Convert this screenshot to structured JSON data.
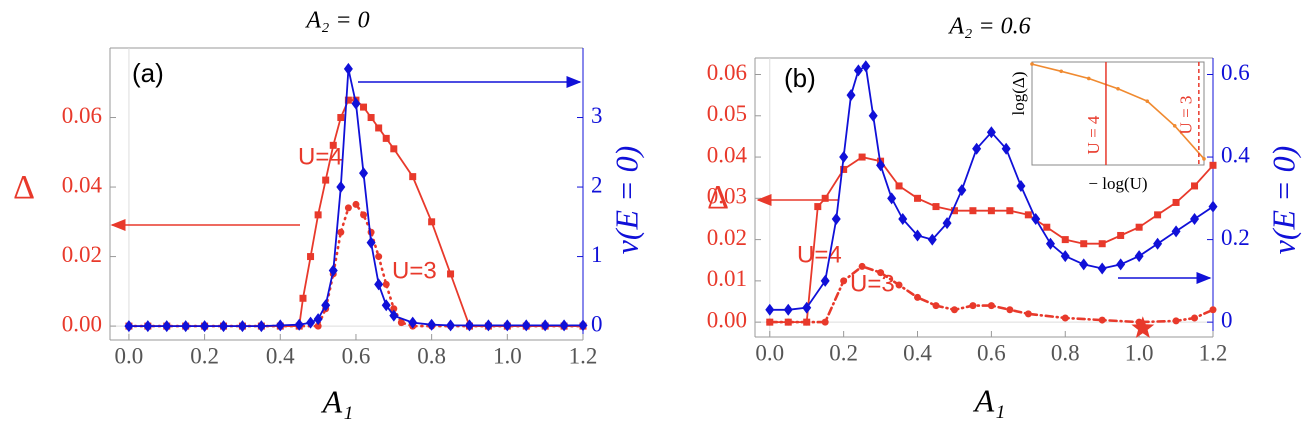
{
  "chart_data": [
    {
      "type": "line",
      "title": "A₂ = 0",
      "panel_label": "(a)",
      "x_label": "A₁",
      "y_label": "Δ",
      "y2_label": "ν(E = 0)",
      "xlim": [
        -0.05,
        1.2
      ],
      "xticks": [
        {
          "value": 0,
          "label": "0.0"
        },
        0.2,
        0.4,
        0.6,
        0.8,
        {
          "value": 1,
          "label": "1.0"
        },
        1.2
      ],
      "ylim": [
        -0.004,
        0.08
      ],
      "yticks": [
        {
          "value": 0,
          "label": "0.00"
        },
        0.02,
        0.04,
        0.06
      ],
      "y2lim": [
        -0.2,
        4.0
      ],
      "y2ticks": [
        0,
        1,
        2,
        3
      ],
      "series": [
        {
          "name": "U=4",
          "color": "#e8392b",
          "marker": "square",
          "line": "solid",
          "x": [
            0,
            0.05,
            0.1,
            0.15,
            0.2,
            0.25,
            0.3,
            0.35,
            0.4,
            0.45,
            0.46,
            0.48,
            0.5,
            0.52,
            0.54,
            0.56,
            0.58,
            0.6,
            0.62,
            0.64,
            0.66,
            0.68,
            0.7,
            0.75,
            0.8,
            0.85,
            0.9,
            0.95,
            1.0,
            1.05,
            1.1,
            1.15,
            1.2
          ],
          "values": [
            0,
            0,
            0,
            0,
            0,
            0,
            0,
            0,
            0,
            0,
            0.008,
            0.02,
            0.032,
            0.042,
            0.052,
            0.06,
            0.065,
            0.065,
            0.063,
            0.06,
            0.057,
            0.054,
            0.051,
            0.043,
            0.03,
            0.015,
            0,
            0,
            0,
            0,
            0,
            0,
            0
          ]
        },
        {
          "name": "U=3",
          "color": "#e8392b",
          "marker": "circle",
          "line": "dotted",
          "x": [
            0,
            0.05,
            0.1,
            0.15,
            0.2,
            0.25,
            0.3,
            0.35,
            0.4,
            0.45,
            0.5,
            0.52,
            0.54,
            0.56,
            0.58,
            0.6,
            0.62,
            0.64,
            0.66,
            0.68,
            0.7,
            0.72,
            0.75,
            0.8,
            0.85,
            0.9,
            0.95,
            1.0,
            1.05,
            1.1,
            1.15,
            1.2
          ],
          "values": [
            0,
            0,
            0,
            0,
            0,
            0,
            0,
            0,
            0,
            0,
            0,
            0.005,
            0.015,
            0.027,
            0.034,
            0.035,
            0.032,
            0.027,
            0.02,
            0.012,
            0.005,
            0.001,
            0,
            0,
            0,
            0,
            0,
            0,
            0,
            0,
            0,
            0
          ]
        },
        {
          "color": "#1010d8",
          "marker": "diamond",
          "line": "solid",
          "axis": "y2",
          "x": [
            0,
            0.05,
            0.1,
            0.15,
            0.2,
            0.25,
            0.3,
            0.35,
            0.4,
            0.45,
            0.48,
            0.5,
            0.52,
            0.54,
            0.56,
            0.58,
            0.6,
            0.62,
            0.64,
            0.66,
            0.68,
            0.7,
            0.75,
            0.8,
            0.85,
            0.9,
            0.95,
            1.0,
            1.05,
            1.1,
            1.15,
            1.2
          ],
          "values": [
            0,
            0,
            0,
            0,
            0,
            0,
            0,
            0,
            0.01,
            0.02,
            0.05,
            0.1,
            0.3,
            0.8,
            2.0,
            3.7,
            3.2,
            2.2,
            1.2,
            0.6,
            0.3,
            0.15,
            0.05,
            0.02,
            0.01,
            0.01,
            0.01,
            0.01,
            0.01,
            0.01,
            0.01,
            0.01
          ]
        }
      ]
    },
    {
      "type": "line",
      "title": "A₂ = 0.6",
      "panel_label": "(b)",
      "x_label": "A₁",
      "y_label": "Δ",
      "y2_label": "ν(E = 0)",
      "xlim": [
        -0.04,
        1.2
      ],
      "xticks": [
        {
          "value": 0,
          "label": "0.0"
        },
        0.2,
        0.4,
        0.6,
        0.8,
        {
          "value": 1,
          "label": "1.0"
        },
        1.2
      ],
      "ylim": [
        -0.0036,
        0.064
      ],
      "yticks": [
        {
          "value": 0,
          "label": "0.00"
        },
        0.01,
        0.02,
        0.03,
        0.04,
        0.05,
        0.06
      ],
      "y2lim": [
        -0.036,
        0.64
      ],
      "y2ticks": [
        0,
        0.2,
        0.4,
        0.6
      ],
      "series": [
        {
          "name": "U=4",
          "color": "#e8392b",
          "marker": "square",
          "line": "solid",
          "x": [
            0,
            0.05,
            0.1,
            0.13,
            0.15,
            0.2,
            0.25,
            0.3,
            0.35,
            0.4,
            0.45,
            0.5,
            0.55,
            0.6,
            0.65,
            0.7,
            0.75,
            0.8,
            0.85,
            0.9,
            0.95,
            1.0,
            1.05,
            1.1,
            1.15,
            1.2
          ],
          "values": [
            0,
            0,
            0,
            0.028,
            0.03,
            0.037,
            0.04,
            0.039,
            0.033,
            0.03,
            0.028,
            0.027,
            0.027,
            0.027,
            0.027,
            0.026,
            0.023,
            0.02,
            0.019,
            0.019,
            0.021,
            0.023,
            0.026,
            0.029,
            0.033,
            0.038
          ]
        },
        {
          "name": "U=3",
          "color": "#e8392b",
          "marker": "circle",
          "line": "dashdot",
          "x": [
            0,
            0.05,
            0.1,
            0.15,
            0.2,
            0.25,
            0.3,
            0.35,
            0.4,
            0.45,
            0.5,
            0.55,
            0.6,
            0.65,
            0.7,
            0.8,
            0.9,
            1.0,
            1.1,
            1.15,
            1.2
          ],
          "values": [
            0,
            0,
            0,
            0,
            0.01,
            0.0135,
            0.012,
            0.009,
            0.006,
            0.004,
            0.003,
            0.004,
            0.004,
            0.003,
            0.002,
            0.001,
            0.0005,
            0,
            0.0003,
            0.001,
            0.003
          ]
        },
        {
          "color": "#1010d8",
          "marker": "diamond",
          "line": "solid",
          "axis": "y2",
          "x": [
            0,
            0.05,
            0.1,
            0.15,
            0.18,
            0.2,
            0.22,
            0.24,
            0.26,
            0.28,
            0.3,
            0.33,
            0.36,
            0.4,
            0.44,
            0.48,
            0.52,
            0.56,
            0.6,
            0.64,
            0.68,
            0.72,
            0.76,
            0.8,
            0.85,
            0.9,
            0.95,
            1.0,
            1.05,
            1.1,
            1.15,
            1.2
          ],
          "values": [
            0.03,
            0.03,
            0.035,
            0.1,
            0.25,
            0.4,
            0.55,
            0.61,
            0.62,
            0.5,
            0.38,
            0.3,
            0.25,
            0.21,
            0.2,
            0.24,
            0.32,
            0.42,
            0.46,
            0.42,
            0.33,
            0.25,
            0.19,
            0.16,
            0.14,
            0.13,
            0.14,
            0.16,
            0.19,
            0.22,
            0.25,
            0.28
          ]
        }
      ],
      "star": {
        "x": 1.01,
        "value": -0.0015,
        "color": "#e8392b"
      },
      "inset": {
        "x_label": "− log(U)",
        "y_label": "log(Δ)",
        "color": "#f08a30",
        "xlim": [
          0,
          1
        ],
        "ylim": [
          0,
          1
        ],
        "x": [
          0,
          0.17,
          0.33,
          0.5,
          0.67,
          0.83,
          1
        ],
        "values": [
          0.98,
          0.91,
          0.84,
          0.74,
          0.62,
          0.38,
          0.06
        ],
        "markers": [
          {
            "label": "U = 4",
            "x": 0.43,
            "line": "solid"
          },
          {
            "label": "U = 3",
            "x": 0.97,
            "line": "dashed"
          }
        ]
      }
    }
  ]
}
